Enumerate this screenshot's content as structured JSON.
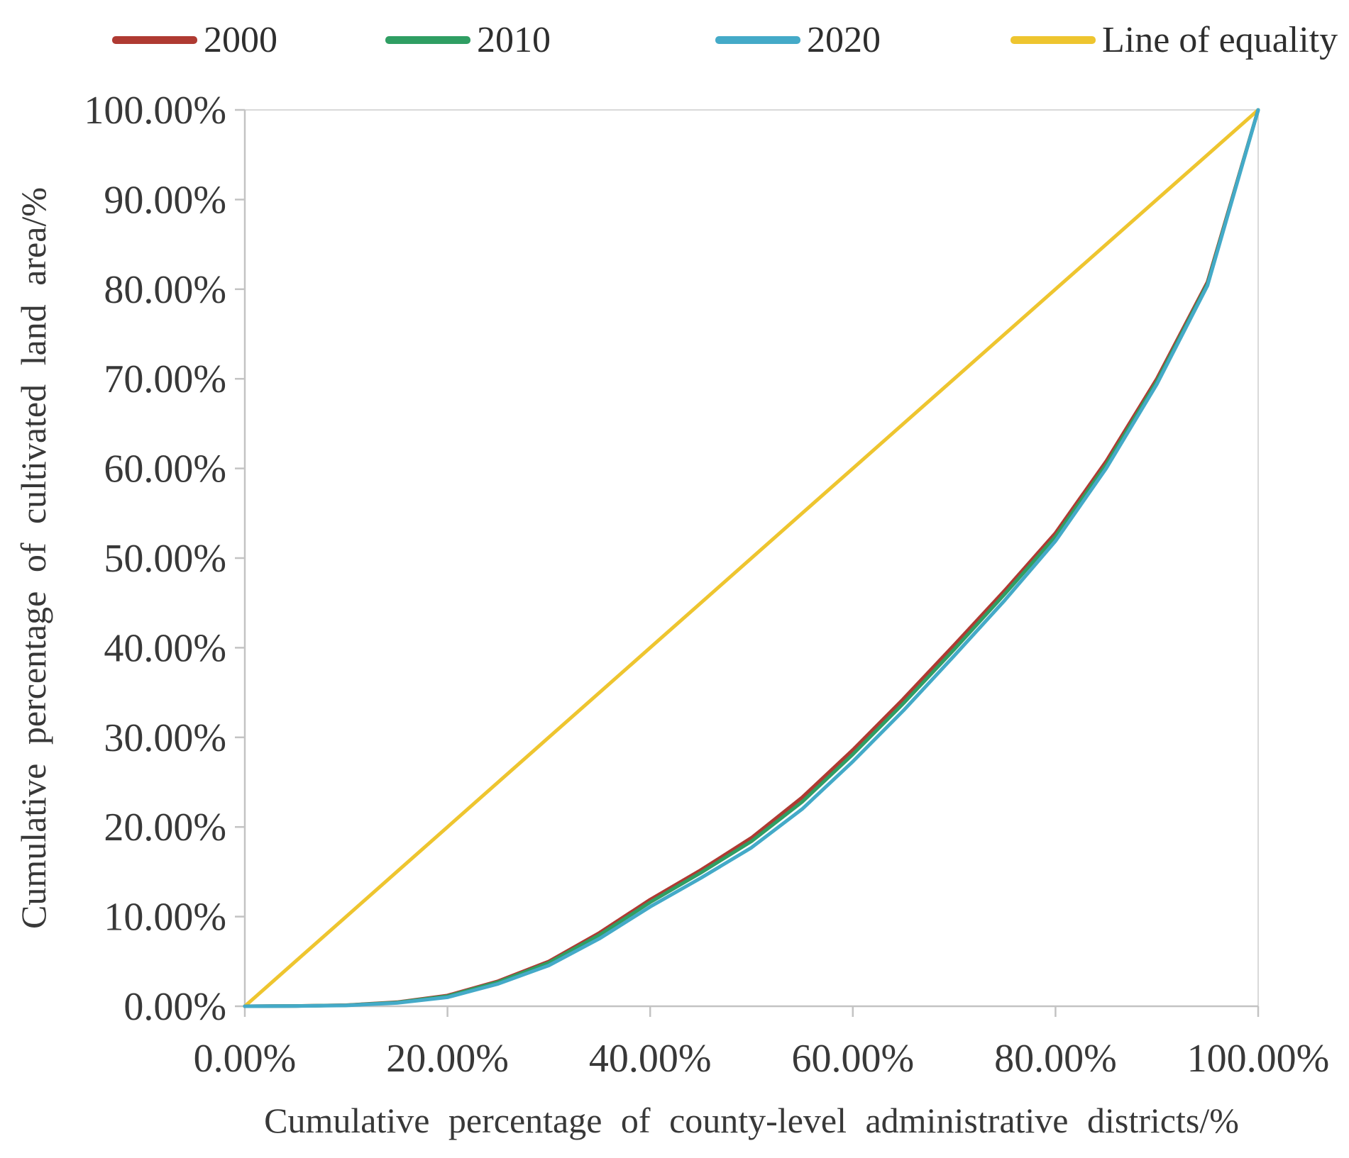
{
  "figure": {
    "background": "#ffffff"
  },
  "legend": {
    "position": "top",
    "items": [
      {
        "label": "2000",
        "color": "#AF3A32"
      },
      {
        "label": "2010",
        "color": "#2F9E63"
      },
      {
        "label": "2020",
        "color": "#44AAC8"
      },
      {
        "label": "Line of equality",
        "color": "#EEC52F"
      }
    ]
  },
  "chart_data": {
    "type": "line",
    "title": "",
    "xlabel": "Cumulative percentage of county-level administrative districts/%",
    "ylabel": "Cumulative percentage of cultivated land area/%",
    "xlim": [
      0,
      100
    ],
    "ylim": [
      0,
      100
    ],
    "grid": false,
    "legend_position": "top",
    "x_ticks": [
      "0.00%",
      "20.00%",
      "40.00%",
      "60.00%",
      "80.00%",
      "100.00%"
    ],
    "y_ticks": [
      "0.00%",
      "10.00%",
      "20.00%",
      "30.00%",
      "40.00%",
      "50.00%",
      "60.00%",
      "70.00%",
      "80.00%",
      "90.00%",
      "100.00%"
    ],
    "x": [
      0,
      5,
      10,
      15,
      20,
      25,
      30,
      35,
      40,
      45,
      50,
      55,
      60,
      65,
      70,
      75,
      80,
      85,
      90,
      95,
      100
    ],
    "series": [
      {
        "name": "Line of equality",
        "color": "#EEC52F",
        "values": [
          0,
          5,
          10,
          15,
          20,
          25,
          30,
          35,
          40,
          45,
          50,
          55,
          60,
          65,
          70,
          75,
          80,
          85,
          90,
          95,
          100
        ]
      },
      {
        "name": "2000",
        "color": "#AF3A32",
        "values": [
          0,
          0.03,
          0.12,
          0.45,
          1.2,
          2.8,
          5.0,
          8.2,
          11.9,
          15.2,
          18.8,
          23.3,
          28.6,
          34.3,
          40.3,
          46.4,
          52.8,
          60.8,
          70.0,
          80.8,
          100
        ]
      },
      {
        "name": "2010",
        "color": "#2F9E63",
        "values": [
          0,
          0.03,
          0.11,
          0.42,
          1.12,
          2.7,
          4.85,
          7.95,
          11.6,
          14.9,
          18.4,
          22.8,
          28.1,
          33.8,
          39.8,
          46.0,
          52.4,
          60.4,
          69.7,
          80.6,
          100
        ]
      },
      {
        "name": "2020",
        "color": "#44AAC8",
        "values": [
          0,
          0.02,
          0.09,
          0.36,
          1.0,
          2.5,
          4.55,
          7.55,
          11.1,
          14.3,
          17.7,
          22.0,
          27.3,
          33.0,
          39.1,
          45.3,
          51.9,
          60.0,
          69.4,
          80.4,
          100
        ]
      }
    ],
    "axis_color": "#C3C3C3",
    "border_color": "#D9D9D9",
    "text_color": "#383838"
  }
}
